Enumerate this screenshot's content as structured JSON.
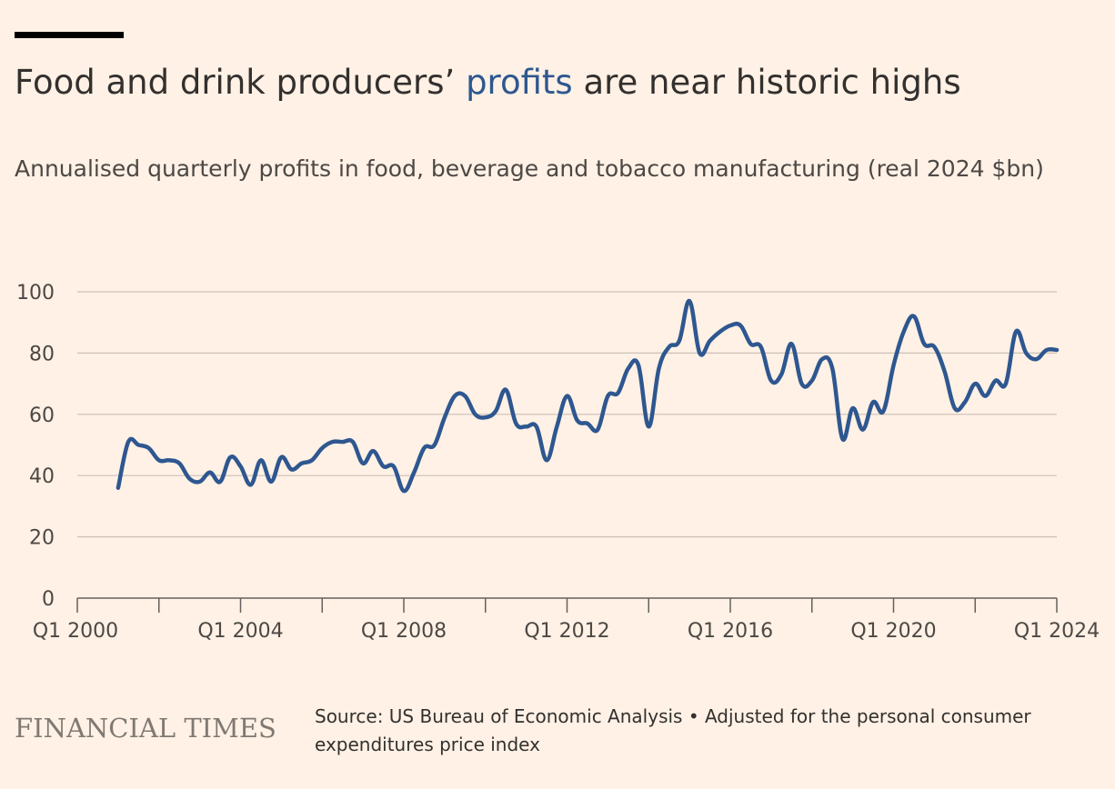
{
  "header": {
    "title_before": "Food and drink producers’ ",
    "title_highlight": "profits",
    "title_after": " are near historic highs",
    "subtitle": "Annualised quarterly profits in food, beverage and tobacco manufacturing (real 2024 $bn)"
  },
  "colors": {
    "background": "#fff1e5",
    "series": "#2e5790",
    "grid": "#ccc1b7",
    "text": "#33302e"
  },
  "chart_data": {
    "type": "line",
    "title": "Food and drink producers’ profits are near historic highs",
    "subtitle": "Annualised quarterly profits in food, beverage and tobacco manufacturing (real 2024 $bn)",
    "xlabel": "",
    "ylabel": "",
    "ylim": [
      0,
      100
    ],
    "yticks": [
      0,
      20,
      40,
      60,
      80,
      100
    ],
    "xticks": [
      "Q1 2000",
      "Q1 2004",
      "Q1 2008",
      "Q1 2012",
      "Q1 2016",
      "Q1 2020",
      "Q1 2024"
    ],
    "grid": true,
    "series": [
      {
        "x": [
          "Q1 2001",
          "Q2 2001",
          "Q3 2001",
          "Q4 2001",
          "Q1 2002",
          "Q2 2002",
          "Q3 2002",
          "Q4 2002",
          "Q1 2003",
          "Q2 2003",
          "Q3 2003",
          "Q4 2003",
          "Q1 2004",
          "Q2 2004",
          "Q3 2004",
          "Q4 2004",
          "Q1 2005",
          "Q2 2005",
          "Q3 2005",
          "Q4 2005",
          "Q1 2006",
          "Q2 2006",
          "Q3 2006",
          "Q4 2006",
          "Q1 2007",
          "Q2 2007",
          "Q3 2007",
          "Q4 2007",
          "Q1 2008",
          "Q2 2008",
          "Q3 2008",
          "Q4 2008",
          "Q1 2009",
          "Q2 2009",
          "Q3 2009",
          "Q4 2009",
          "Q1 2010",
          "Q2 2010",
          "Q3 2010",
          "Q4 2010",
          "Q1 2011",
          "Q2 2011",
          "Q3 2011",
          "Q4 2011",
          "Q1 2012",
          "Q2 2012",
          "Q3 2012",
          "Q4 2012",
          "Q1 2013",
          "Q2 2013",
          "Q3 2013",
          "Q4 2013",
          "Q1 2014",
          "Q2 2014",
          "Q3 2014",
          "Q4 2014",
          "Q1 2015",
          "Q2 2015",
          "Q3 2015",
          "Q4 2015",
          "Q1 2016",
          "Q2 2016",
          "Q3 2016",
          "Q4 2016",
          "Q1 2017",
          "Q2 2017",
          "Q3 2017",
          "Q4 2017",
          "Q1 2018",
          "Q2 2018",
          "Q3 2018",
          "Q4 2018",
          "Q1 2019",
          "Q2 2019",
          "Q3 2019",
          "Q4 2019",
          "Q1 2020",
          "Q2 2020",
          "Q3 2020",
          "Q4 2020",
          "Q1 2021",
          "Q2 2021",
          "Q3 2021",
          "Q4 2021",
          "Q1 2022",
          "Q2 2022",
          "Q3 2022",
          "Q4 2022",
          "Q1 2023",
          "Q2 2023",
          "Q3 2023",
          "Q4 2023",
          "Q1 2024"
        ],
        "values": [
          36,
          51,
          50,
          49,
          45,
          45,
          44,
          39,
          38,
          41,
          38,
          46,
          43,
          37,
          45,
          38,
          46,
          42,
          44,
          45,
          49,
          51,
          51,
          51,
          44,
          48,
          43,
          43,
          35,
          41,
          49,
          50,
          59,
          66,
          66,
          60,
          59,
          61,
          68,
          57,
          56,
          56,
          45,
          56,
          66,
          58,
          57,
          55,
          66,
          67,
          75,
          76,
          56,
          75,
          82,
          84,
          97,
          80,
          84,
          87,
          89,
          89,
          83,
          82,
          71,
          73,
          83,
          70,
          71,
          78,
          75,
          52,
          62,
          55,
          64,
          61,
          76,
          87,
          92,
          83,
          82,
          74,
          62,
          64,
          70,
          66,
          71,
          70,
          87,
          80,
          78,
          81,
          81
        ]
      }
    ]
  },
  "footer": {
    "logo": "FINANCIAL TIMES",
    "source": "Source: US Bureau of Economic Analysis • Adjusted for the personal consumer expenditures price index"
  }
}
